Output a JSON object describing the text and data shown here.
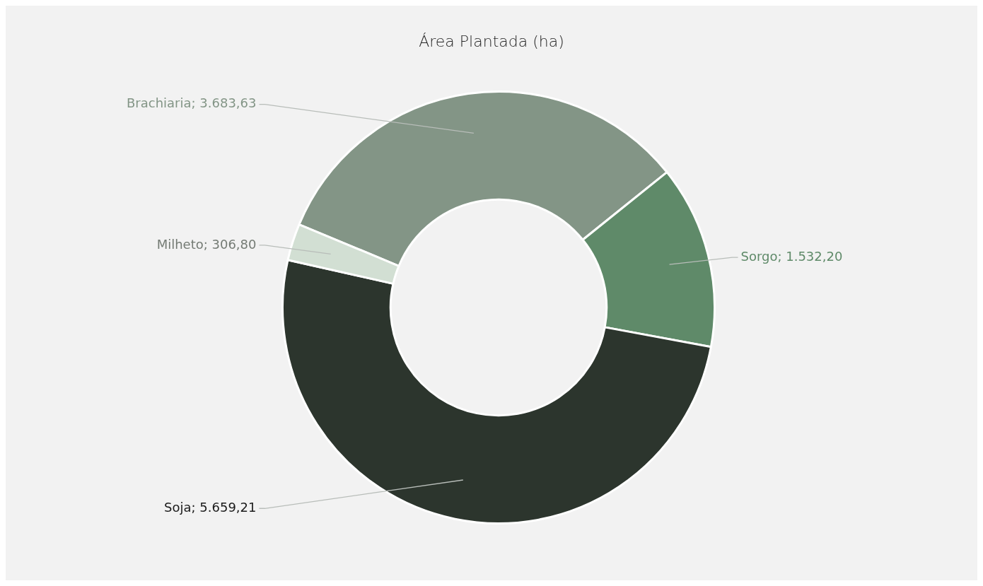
{
  "chart_data": {
    "type": "donut",
    "title": "Área Plantada (ha)",
    "categories": [
      "Brachiaria",
      "Sorgo",
      "Soja",
      "Milheto"
    ],
    "values": [
      3683.63,
      1532.2,
      5659.21,
      306.8
    ],
    "colors": [
      "#839586",
      "#5f8a69",
      "#2c352d",
      "#d2dfd3"
    ],
    "value_labels": [
      "3.683,63",
      "1.532,20",
      "5.659,21",
      "306,80"
    ],
    "legend": false
  }
}
